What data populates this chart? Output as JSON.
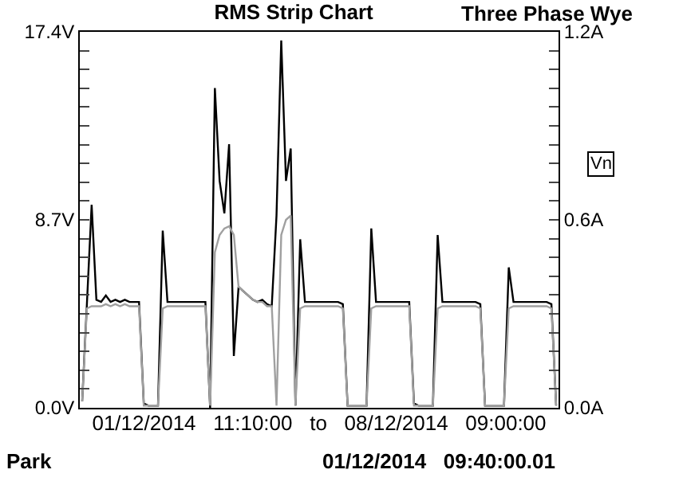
{
  "chart_data": {
    "type": "line",
    "title": "RMS Strip Chart",
    "subtitle": "Three Phase Wye",
    "xlabel": "01/12/2014   11:10:00   to   08/12/2014   09:00:00",
    "annotations": [
      "Vn",
      "Park",
      "01/12/2014   09:40:00.01"
    ],
    "categories": [
      null,
      null,
      null,
      null,
      null,
      null,
      null,
      null,
      null,
      null,
      null,
      null,
      null,
      null,
      null,
      null,
      null,
      null,
      null,
      null,
      null,
      null,
      null,
      null,
      null,
      null,
      null,
      null,
      null,
      null,
      null,
      null,
      null,
      null,
      null,
      null,
      null,
      null,
      null,
      null,
      null,
      null,
      null,
      null,
      null,
      null,
      null,
      null,
      null,
      null,
      null,
      null,
      null,
      null,
      null,
      null,
      null,
      null,
      null,
      null,
      null,
      null,
      null,
      null,
      null,
      null,
      null,
      null,
      null,
      null,
      null,
      null,
      null,
      null,
      null,
      null,
      null,
      null,
      null,
      null,
      null,
      null,
      null,
      null,
      null,
      null,
      null,
      null,
      null,
      null,
      null,
      null,
      null,
      null,
      null,
      null,
      null,
      null,
      null,
      null,
      null
    ],
    "series": [
      {
        "color": "#000000",
        "values": [
          0.3,
          4.8,
          9.4,
          5.0,
          4.9,
          5.2,
          4.9,
          5.0,
          4.9,
          5.0,
          4.9,
          4.9,
          4.9,
          0.2,
          0.1,
          0.1,
          0.1,
          8.2,
          4.9,
          4.9,
          4.9,
          4.9,
          4.9,
          4.9,
          4.9,
          4.9,
          4.9,
          0.0,
          14.8,
          10.5,
          9.0,
          12.2,
          2.4,
          5.6,
          5.4,
          5.2,
          5.0,
          4.9,
          5.0,
          4.8,
          4.7,
          8.9,
          17.0,
          10.5,
          12.0,
          0.1,
          7.8,
          4.9,
          4.9,
          4.9,
          4.9,
          4.9,
          4.9,
          4.9,
          4.9,
          4.8,
          0.1,
          0.1,
          0.1,
          0.1,
          0.1,
          8.3,
          4.9,
          4.9,
          4.9,
          4.9,
          4.9,
          4.9,
          4.9,
          4.9,
          0.2,
          0.1,
          0.1,
          0.1,
          0.1,
          8.0,
          4.9,
          4.9,
          4.9,
          4.9,
          4.9,
          4.9,
          4.9,
          4.9,
          4.8,
          0.1,
          0.1,
          0.1,
          0.1,
          0.1,
          6.5,
          4.9,
          4.9,
          4.9,
          4.9,
          4.9,
          4.9,
          4.9,
          4.9,
          4.8,
          0.1
        ]
      },
      {
        "color": "#a0a0a0",
        "values": [
          0.3,
          4.6,
          4.7,
          4.7,
          4.7,
          4.8,
          4.7,
          4.8,
          4.7,
          4.8,
          4.7,
          4.7,
          4.7,
          0.1,
          0.1,
          0.1,
          0.1,
          4.6,
          4.7,
          4.7,
          4.7,
          4.7,
          4.7,
          4.7,
          4.7,
          4.7,
          4.7,
          0.1,
          7.2,
          8.0,
          8.3,
          8.4,
          8.0,
          5.6,
          5.4,
          5.2,
          5.0,
          4.9,
          4.9,
          4.7,
          4.7,
          0.1,
          8.0,
          8.7,
          8.9,
          0.1,
          4.6,
          4.7,
          4.7,
          4.7,
          4.7,
          4.7,
          4.7,
          4.7,
          4.7,
          4.6,
          0.1,
          0.1,
          0.1,
          0.1,
          0.1,
          4.6,
          4.7,
          4.7,
          4.7,
          4.7,
          4.7,
          4.7,
          4.7,
          4.7,
          0.1,
          0.1,
          0.1,
          0.1,
          0.1,
          4.6,
          4.7,
          4.7,
          4.7,
          4.7,
          4.7,
          4.7,
          4.7,
          4.7,
          4.6,
          0.1,
          0.1,
          0.1,
          0.1,
          0.1,
          4.6,
          4.7,
          4.7,
          4.7,
          4.7,
          4.7,
          4.7,
          4.7,
          4.7,
          4.6,
          0.1
        ]
      }
    ],
    "ylim": [
      0,
      17.4
    ],
    "yticks": [
      {
        "value": 0,
        "label": "0.0V"
      },
      {
        "value": 0.87,
        "label": null
      },
      {
        "value": 1.74,
        "label": null
      },
      {
        "value": 2.61,
        "label": null
      },
      {
        "value": 3.48,
        "label": null
      },
      {
        "value": 4.35,
        "label": null
      },
      {
        "value": 5.22,
        "label": null
      },
      {
        "value": 6.09,
        "label": null
      },
      {
        "value": 6.96,
        "label": null
      },
      {
        "value": 7.83,
        "label": null
      },
      {
        "value": 8.7,
        "label": "8.7V"
      },
      {
        "value": 9.57,
        "label": null
      },
      {
        "value": 10.44,
        "label": null
      },
      {
        "value": 11.31,
        "label": null
      },
      {
        "value": 12.18,
        "label": null
      },
      {
        "value": 13.05,
        "label": null
      },
      {
        "value": 13.92,
        "label": null
      },
      {
        "value": 14.79,
        "label": null
      },
      {
        "value": 15.66,
        "label": null
      },
      {
        "value": 16.53,
        "label": null
      },
      {
        "value": 17.4,
        "label": "17.4V"
      }
    ],
    "y2lim": [
      0,
      1.2
    ],
    "y2ticks": [
      {
        "value": 0,
        "label": "0.0A"
      },
      {
        "value": 0.06,
        "label": null
      },
      {
        "value": 0.12,
        "label": null
      },
      {
        "value": 0.18,
        "label": null
      },
      {
        "value": 0.24,
        "label": null
      },
      {
        "value": 0.3,
        "label": null
      },
      {
        "value": 0.36,
        "label": null
      },
      {
        "value": 0.42,
        "label": null
      },
      {
        "value": 0.48,
        "label": null
      },
      {
        "value": 0.54,
        "label": null
      },
      {
        "value": 0.6,
        "label": "0.6A"
      },
      {
        "value": 0.66,
        "label": null
      },
      {
        "value": 0.72,
        "label": null
      },
      {
        "value": 0.78,
        "label": null
      },
      {
        "value": 0.84,
        "label": null
      },
      {
        "value": 0.9,
        "label": null
      },
      {
        "value": 0.96,
        "label": null
      },
      {
        "value": 1.02,
        "label": null
      },
      {
        "value": 1.08,
        "label": null
      },
      {
        "value": 1.14,
        "label": null
      },
      {
        "value": 1.2,
        "label": "1.2A"
      }
    ],
    "line_style": "solid"
  }
}
